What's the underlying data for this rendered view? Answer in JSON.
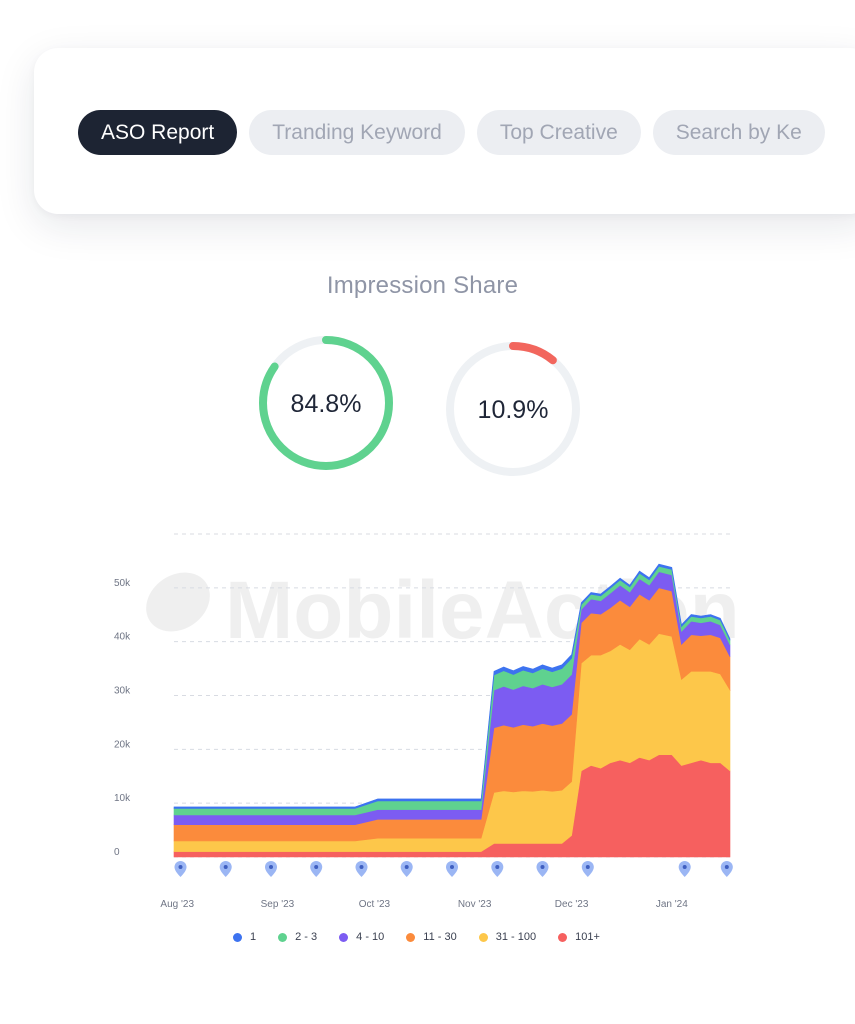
{
  "tabs": [
    {
      "label": "ASO Report",
      "active": true
    },
    {
      "label": "Tranding Keyword",
      "active": false
    },
    {
      "label": "Top Creative",
      "active": false
    },
    {
      "label": "Search by Ke",
      "active": false
    }
  ],
  "impression_share": {
    "title": "Impression Share",
    "gauges": [
      {
        "value": 84.8,
        "label": "84.8%",
        "color": "#5fd28f"
      },
      {
        "value": 10.9,
        "label": "10.9%",
        "color": "#f2665d"
      }
    ]
  },
  "watermark": "MobileAction",
  "chart_data": {
    "type": "area",
    "stacked": true,
    "ylim": [
      0,
      60000
    ],
    "y_ticks": [
      {
        "value": 0,
        "label": "0"
      },
      {
        "value": 10000,
        "label": "10k"
      },
      {
        "value": 20000,
        "label": "20k"
      },
      {
        "value": 30000,
        "label": "30k"
      },
      {
        "value": 40000,
        "label": "40k"
      },
      {
        "value": 50000,
        "label": "50k"
      }
    ],
    "x_tick_labels": [
      "Aug '23",
      "Sep '23",
      "Oct '23",
      "Nov '23",
      "Dec '23",
      "Jan '24"
    ],
    "x_ticks": [
      {
        "date": "2023-08-01",
        "label": "Aug '23"
      },
      {
        "date": "2023-09-01",
        "label": "Sep '23"
      },
      {
        "date": "2023-10-01",
        "label": "Oct '23"
      },
      {
        "date": "2023-11-01",
        "label": "Nov '23"
      },
      {
        "date": "2023-12-01",
        "label": "Dec '23"
      },
      {
        "date": "2024-01-01",
        "label": "Jan '24"
      }
    ],
    "x": [
      "2023-07-31",
      "2023-08-07",
      "2023-08-14",
      "2023-08-21",
      "2023-08-28",
      "2023-09-04",
      "2023-09-11",
      "2023-09-18",
      "2023-09-25",
      "2023-10-02",
      "2023-10-09",
      "2023-10-16",
      "2023-10-23",
      "2023-10-30",
      "2023-11-03",
      "2023-11-07",
      "2023-11-10",
      "2023-11-13",
      "2023-11-16",
      "2023-11-19",
      "2023-11-22",
      "2023-11-25",
      "2023-11-28",
      "2023-12-01",
      "2023-12-04",
      "2023-12-07",
      "2023-12-10",
      "2023-12-13",
      "2023-12-16",
      "2023-12-19",
      "2023-12-22",
      "2023-12-25",
      "2023-12-28",
      "2024-01-01",
      "2024-01-04",
      "2024-01-07",
      "2024-01-10",
      "2024-01-13",
      "2024-01-16",
      "2024-01-19"
    ],
    "series": [
      {
        "name": "101+",
        "color": "#f6605f",
        "values": [
          1000,
          1000,
          1000,
          1000,
          1000,
          1000,
          1000,
          1000,
          1000,
          1000,
          1000,
          1000,
          1000,
          1000,
          1000,
          2500,
          2500,
          2500,
          2500,
          2500,
          2500,
          2500,
          2500,
          4000,
          16000,
          17000,
          16500,
          17500,
          18000,
          17500,
          18500,
          18000,
          19000,
          19000,
          17000,
          17500,
          18000,
          17500,
          17500,
          16000
        ]
      },
      {
        "name": "31 - 100",
        "color": "#fdc74a",
        "values": [
          2000,
          2000,
          2000,
          2000,
          2000,
          2000,
          2000,
          2000,
          2000,
          2500,
          2500,
          2500,
          2500,
          2500,
          2500,
          9500,
          9800,
          9600,
          9800,
          9700,
          9900,
          9700,
          9900,
          10000,
          20000,
          20500,
          21000,
          20800,
          21500,
          21000,
          22000,
          21500,
          22500,
          22000,
          16000,
          17000,
          16500,
          17000,
          16500,
          15000
        ]
      },
      {
        "name": "11 - 30",
        "color": "#fb8b3c",
        "values": [
          3000,
          3000,
          3000,
          3000,
          3000,
          3000,
          3000,
          3000,
          3000,
          3500,
          3500,
          3500,
          3500,
          3500,
          3500,
          12000,
          12200,
          12000,
          12300,
          12100,
          12400,
          12200,
          12400,
          12500,
          7500,
          7800,
          7600,
          8000,
          8200,
          8000,
          8300,
          8200,
          8500,
          8400,
          6500,
          6800,
          6600,
          6800,
          6700,
          6200
        ]
      },
      {
        "name": "4 - 10",
        "color": "#7c5cf2",
        "values": [
          1800,
          1800,
          1800,
          1800,
          1800,
          1800,
          1800,
          1800,
          1800,
          1800,
          1800,
          1800,
          1800,
          1800,
          1800,
          7000,
          7200,
          7000,
          7200,
          7100,
          7300,
          7200,
          7300,
          7400,
          2500,
          2600,
          2500,
          2700,
          2800,
          2700,
          2900,
          2800,
          3000,
          3000,
          2400,
          2500,
          2400,
          2500,
          2400,
          2200
        ]
      },
      {
        "name": "2 - 3",
        "color": "#5fd28f",
        "values": [
          1200,
          1200,
          1200,
          1200,
          1200,
          1200,
          1200,
          1200,
          1200,
          1600,
          1600,
          1600,
          1600,
          1600,
          1600,
          2800,
          2900,
          2800,
          2900,
          2800,
          2900,
          2800,
          2900,
          3000,
          900,
          900,
          900,
          950,
          950,
          950,
          1000,
          1000,
          1000,
          1000,
          900,
          900,
          900,
          900,
          900,
          850
        ]
      },
      {
        "name": "1",
        "color": "#3d73f0",
        "values": [
          300,
          300,
          300,
          300,
          300,
          300,
          300,
          300,
          300,
          400,
          400,
          400,
          400,
          400,
          400,
          700,
          700,
          700,
          700,
          700,
          700,
          700,
          700,
          700,
          350,
          350,
          350,
          350,
          350,
          350,
          400,
          400,
          400,
          400,
          350,
          350,
          350,
          350,
          350,
          300
        ]
      }
    ],
    "legend_order": [
      "1",
      "2 - 3",
      "4 - 10",
      "11 - 30",
      "31 - 100",
      "101+"
    ],
    "legend_placement": "bottom",
    "grid": true,
    "event_markers": [
      "2023-08-02",
      "2023-08-16",
      "2023-08-30",
      "2023-09-13",
      "2023-09-27",
      "2023-10-11",
      "2023-10-25",
      "2023-11-08",
      "2023-11-22",
      "2023-12-06",
      "2024-01-05",
      "2024-01-18"
    ],
    "marker_color": "#9bb6f4"
  }
}
